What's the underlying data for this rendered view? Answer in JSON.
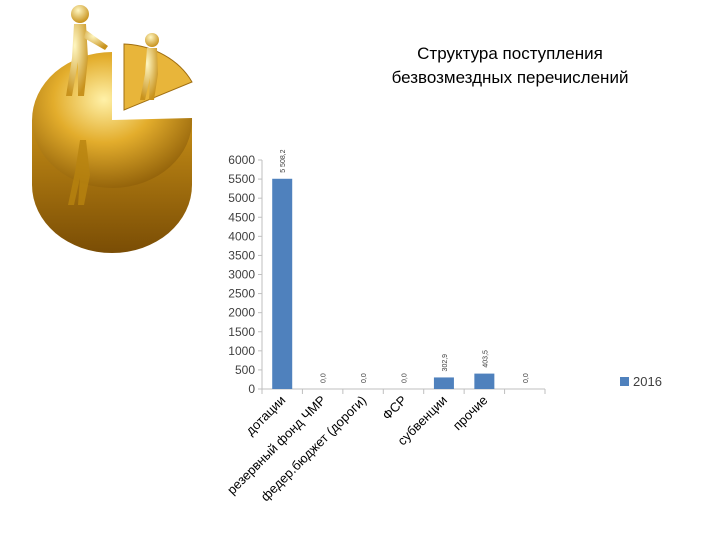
{
  "title_lines": [
    "Структура поступления",
    "безвозмездных перечислений"
  ],
  "chart_data": {
    "type": "bar",
    "title": "Структура поступления безвозмездных перечислений",
    "categories": [
      "дотации",
      "резервный фонд ЧМР",
      "федер.бюджет (дороги)",
      "ФСР",
      "субвенции",
      "прочие",
      ""
    ],
    "series": [
      {
        "name": "2016",
        "values": [
          5508.2,
          0.0,
          0.0,
          0.0,
          302.9,
          403.5,
          0.0
        ],
        "color": "#4f81bd"
      }
    ],
    "data_labels": [
      "5 508,2",
      "0,0",
      "0,0",
      "0,0",
      "302,9",
      "403,5",
      "0,0"
    ],
    "ylim": [
      0,
      6000
    ],
    "yticks": [
      0,
      500,
      1000,
      1500,
      2000,
      2500,
      3000,
      3500,
      4000,
      4500,
      5000,
      5500,
      6000
    ],
    "grid": false,
    "legend_position": "right",
    "xlabel": "",
    "ylabel": ""
  },
  "colors": {
    "bar": "#4f81bd",
    "axis": "#bfbfbf",
    "gold": "#d4a017"
  },
  "illustration": {
    "icon": "gold-pie-figures-icon"
  }
}
